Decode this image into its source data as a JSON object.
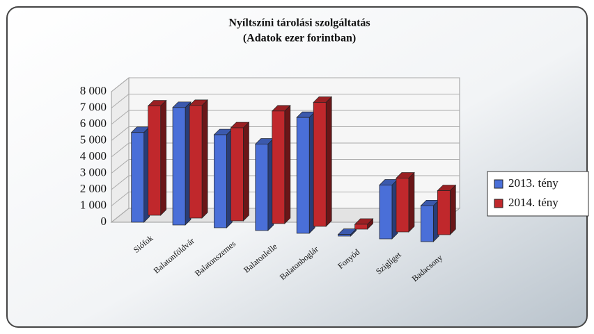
{
  "chart_data": {
    "type": "bar3d",
    "title": "Nyíltszíni tárolási szolgáltatás",
    "subtitle": "(Adatok ezer forintban)",
    "categories": [
      "Siófok",
      "Balatonföldvár",
      "Balatonszemes",
      "Balatonlelle",
      "Balatonboglár",
      "Fonyód",
      "Szigliget",
      "Badacsony"
    ],
    "series": [
      {
        "name": "2013. tény",
        "color": "#4a6fd8",
        "values": [
          5500,
          7200,
          5700,
          5300,
          7100,
          100,
          3300,
          2200
        ]
      },
      {
        "name": "2014. tény",
        "color": "#c0282c",
        "values": [
          6700,
          6900,
          5700,
          6900,
          7600,
          300,
          3300,
          2700
        ]
      }
    ],
    "ylim": [
      0,
      8000
    ],
    "yticks": [
      0,
      {
        "value": 1000,
        "label": "1 000"
      },
      {
        "value": 2000,
        "label": "2 000"
      },
      {
        "value": 3000,
        "label": "3 000"
      },
      {
        "value": 4000,
        "label": "4 000"
      },
      {
        "value": 5000,
        "label": "5 000"
      },
      {
        "value": 6000,
        "label": "6 000"
      },
      {
        "value": 7000,
        "label": "7 000"
      },
      {
        "value": 8000,
        "label": "8 000"
      }
    ],
    "grid": true,
    "legend": "right"
  }
}
